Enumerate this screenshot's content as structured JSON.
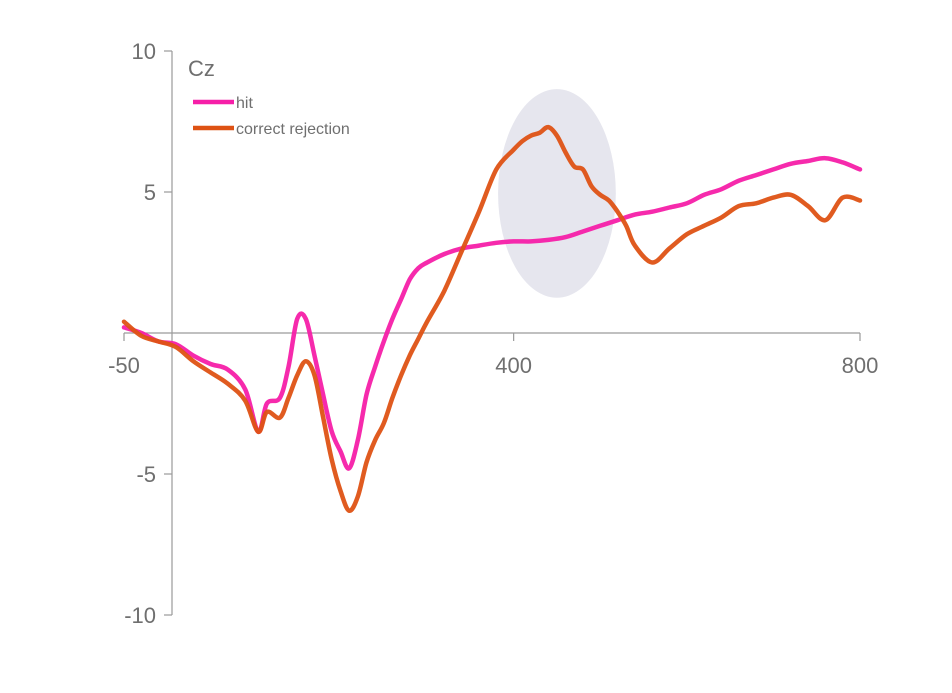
{
  "chart_data": {
    "type": "line",
    "title": "Cz",
    "xlabel": "",
    "ylabel": "",
    "xlim": [
      -50,
      800
    ],
    "ylim": [
      -10,
      10
    ],
    "x_ticks": [
      -50,
      400,
      800
    ],
    "y_ticks": [
      10,
      5,
      -5,
      -10
    ],
    "grid": false,
    "legend_position": "top-left",
    "highlight_region": {
      "x_center": 450,
      "x_half_width": 68,
      "y_center": 4.95,
      "y_half_height": 3.7,
      "color": "#e6e6ee"
    },
    "series": [
      {
        "name": "hit",
        "color": "#f61fa8",
        "x": [
          -50,
          -30,
          -10,
          10,
          30,
          50,
          70,
          90,
          105,
          115,
          130,
          140,
          150,
          160,
          170,
          180,
          190,
          200,
          210,
          220,
          230,
          240,
          250,
          260,
          270,
          280,
          290,
          300,
          320,
          340,
          360,
          380,
          400,
          420,
          440,
          460,
          480,
          500,
          520,
          540,
          560,
          580,
          600,
          620,
          640,
          660,
          680,
          700,
          720,
          740,
          760,
          780,
          800
        ],
        "y": [
          0.2,
          0.0,
          -0.3,
          -0.4,
          -0.8,
          -1.1,
          -1.3,
          -2.0,
          -3.5,
          -2.5,
          -2.3,
          -1.2,
          0.5,
          0.5,
          -0.8,
          -2.2,
          -3.5,
          -4.2,
          -4.8,
          -3.8,
          -2.2,
          -1.2,
          -0.3,
          0.5,
          1.2,
          1.9,
          2.3,
          2.5,
          2.8,
          3.0,
          3.1,
          3.2,
          3.25,
          3.25,
          3.3,
          3.4,
          3.6,
          3.8,
          4.0,
          4.2,
          4.3,
          4.45,
          4.6,
          4.9,
          5.1,
          5.4,
          5.6,
          5.8,
          6.0,
          6.1,
          6.2,
          6.05,
          5.8
        ]
      },
      {
        "name": "correct rejection",
        "color": "#de5214",
        "x": [
          -50,
          -30,
          -10,
          10,
          30,
          50,
          70,
          90,
          105,
          115,
          130,
          140,
          150,
          160,
          170,
          180,
          190,
          200,
          210,
          220,
          230,
          240,
          250,
          260,
          270,
          280,
          290,
          300,
          320,
          340,
          360,
          380,
          400,
          410,
          420,
          430,
          440,
          450,
          460,
          470,
          480,
          490,
          500,
          510,
          520,
          530,
          540,
          560,
          580,
          600,
          620,
          640,
          660,
          680,
          700,
          720,
          740,
          760,
          780,
          800
        ],
        "y": [
          0.4,
          -0.1,
          -0.3,
          -0.5,
          -1.0,
          -1.4,
          -1.8,
          -2.4,
          -3.5,
          -2.8,
          -3.0,
          -2.3,
          -1.5,
          -1.0,
          -1.5,
          -3.0,
          -4.5,
          -5.6,
          -6.3,
          -5.8,
          -4.6,
          -3.8,
          -3.2,
          -2.3,
          -1.5,
          -0.8,
          -0.2,
          0.4,
          1.5,
          2.9,
          4.3,
          5.8,
          6.5,
          6.8,
          7.0,
          7.1,
          7.3,
          7.0,
          6.4,
          5.9,
          5.8,
          5.2,
          4.9,
          4.7,
          4.3,
          3.8,
          3.1,
          2.5,
          3.0,
          3.5,
          3.8,
          4.1,
          4.5,
          4.6,
          4.8,
          4.9,
          4.5,
          4.0,
          4.8,
          4.7
        ]
      }
    ]
  }
}
